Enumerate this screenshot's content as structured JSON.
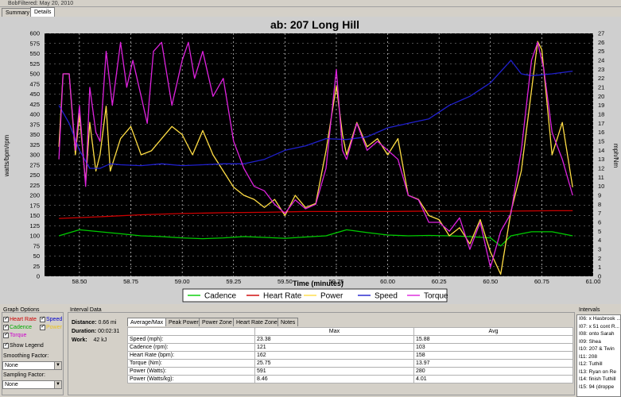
{
  "window": {
    "title": "BobFiltered: May 20, 2010"
  },
  "tabs": [
    {
      "label": "Summary"
    },
    {
      "label": "Details"
    }
  ],
  "chart_data": {
    "type": "line",
    "title": "ab: 207 Long Hill",
    "xlabel": "Time (minutes)",
    "ylabel_left": "watts/bpm/rpm",
    "ylabel_right": "mph/Nm",
    "xlim": [
      58.33,
      61.0
    ],
    "ylim_left": [
      0,
      600
    ],
    "ylim_right": [
      0,
      27
    ],
    "x_ticks": [
      "58.50",
      "58.75",
      "59.00",
      "59.25",
      "59.50",
      "59.75",
      "60.00",
      "60.25",
      "60.50",
      "60.75",
      "61.00"
    ],
    "y_ticks_left": [
      "0",
      "25",
      "50",
      "75",
      "100",
      "125",
      "150",
      "175",
      "200",
      "225",
      "250",
      "275",
      "300",
      "325",
      "350",
      "375",
      "400",
      "425",
      "450",
      "475",
      "500",
      "525",
      "550",
      "575",
      "600"
    ],
    "y_ticks_right": [
      "0",
      "1",
      "2",
      "3",
      "4",
      "5",
      "6",
      "7",
      "8",
      "9",
      "10",
      "11",
      "12",
      "13",
      "14",
      "15",
      "16",
      "17",
      "18",
      "19",
      "20",
      "21",
      "22",
      "23",
      "24",
      "25",
      "26",
      "27"
    ],
    "grid": true,
    "legend": "bottom",
    "series": [
      {
        "name": "Cadence",
        "axis": "left",
        "color": "#00cc00",
        "x": [
          58.4,
          58.5,
          58.6,
          58.7,
          58.8,
          58.9,
          59.0,
          59.1,
          59.2,
          59.3,
          59.4,
          59.5,
          59.6,
          59.7,
          59.8,
          59.9,
          60.0,
          60.1,
          60.2,
          60.3,
          60.4,
          60.5,
          60.55,
          60.6,
          60.7,
          60.8,
          60.9
        ],
        "y": [
          100,
          115,
          110,
          105,
          100,
          98,
          95,
          93,
          95,
          98,
          96,
          94,
          97,
          100,
          115,
          108,
          102,
          100,
          101,
          100,
          98,
          95,
          75,
          100,
          110,
          110,
          100
        ]
      },
      {
        "name": "Heart Rate",
        "axis": "left",
        "color": "#cc0000",
        "x": [
          58.4,
          58.6,
          58.8,
          59.0,
          59.2,
          59.4,
          59.6,
          59.8,
          60.0,
          60.2,
          60.4,
          60.6,
          60.8,
          60.9
        ],
        "y": [
          143,
          147,
          152,
          155,
          157,
          158,
          160,
          160,
          160,
          161,
          160,
          161,
          162,
          162
        ]
      },
      {
        "name": "Power",
        "axis": "left",
        "color": "#ffdd44",
        "x": [
          58.4,
          58.42,
          58.45,
          58.48,
          58.5,
          58.53,
          58.55,
          58.58,
          58.6,
          58.63,
          58.65,
          58.7,
          58.75,
          58.8,
          58.85,
          58.9,
          58.95,
          59.0,
          59.05,
          59.1,
          59.15,
          59.2,
          59.25,
          59.3,
          59.35,
          59.4,
          59.45,
          59.5,
          59.55,
          59.6,
          59.65,
          59.7,
          59.75,
          59.78,
          59.8,
          59.85,
          59.9,
          59.95,
          60.0,
          60.05,
          60.1,
          60.15,
          60.2,
          60.25,
          60.3,
          60.35,
          60.4,
          60.45,
          60.5,
          60.55,
          60.6,
          60.65,
          60.7,
          60.73,
          60.75,
          60.8,
          60.85,
          60.9
        ],
        "y": [
          320,
          500,
          500,
          300,
          400,
          230,
          380,
          260,
          300,
          420,
          260,
          340,
          370,
          300,
          310,
          340,
          370,
          350,
          300,
          360,
          300,
          260,
          220,
          200,
          190,
          170,
          190,
          150,
          200,
          170,
          180,
          310,
          470,
          350,
          300,
          380,
          320,
          340,
          300,
          340,
          200,
          190,
          150,
          140,
          100,
          120,
          80,
          140,
          60,
          5,
          160,
          260,
          460,
          580,
          560,
          300,
          380,
          220
        ]
      },
      {
        "name": "Speed",
        "axis": "right",
        "color": "#2020cc",
        "x": [
          58.4,
          58.45,
          58.5,
          58.55,
          58.6,
          58.65,
          58.7,
          58.8,
          58.9,
          59.0,
          59.1,
          59.2,
          59.3,
          59.4,
          59.5,
          59.6,
          59.7,
          59.8,
          59.9,
          60.0,
          60.1,
          60.2,
          60.3,
          60.4,
          60.5,
          60.6,
          60.65,
          60.7,
          60.8,
          60.9
        ],
        "y": [
          19,
          17,
          14,
          12,
          12,
          12.5,
          12.4,
          12.3,
          12.5,
          12.3,
          12.4,
          12.5,
          12.5,
          13,
          14,
          14.5,
          15.3,
          15.2,
          15.5,
          16.5,
          17,
          17.5,
          19,
          20,
          21.5,
          24,
          22.5,
          22.3,
          22.5,
          22.8
        ]
      },
      {
        "name": "Torque",
        "axis": "right",
        "color": "#dd22dd",
        "x": [
          58.4,
          58.42,
          58.45,
          58.48,
          58.5,
          58.53,
          58.55,
          58.58,
          58.6,
          58.63,
          58.66,
          58.7,
          58.73,
          58.76,
          58.8,
          58.83,
          58.86,
          58.9,
          58.95,
          59.0,
          59.03,
          59.06,
          59.1,
          59.15,
          59.2,
          59.25,
          59.3,
          59.35,
          59.4,
          59.45,
          59.5,
          59.55,
          59.6,
          59.65,
          59.7,
          59.75,
          59.78,
          59.8,
          59.85,
          59.9,
          59.95,
          60.0,
          60.05,
          60.1,
          60.15,
          60.2,
          60.25,
          60.3,
          60.35,
          60.4,
          60.45,
          60.5,
          60.55,
          60.6,
          60.65,
          60.7,
          60.73,
          60.76,
          60.8,
          60.85,
          60.9
        ],
        "y": [
          13,
          22.5,
          22.5,
          14,
          19,
          10,
          21,
          16,
          15,
          25,
          19,
          26,
          21,
          24,
          20,
          17,
          25,
          26,
          19,
          24,
          26,
          22,
          25,
          20,
          22,
          15,
          12,
          10,
          9.5,
          8,
          7,
          8.5,
          7.5,
          8,
          12,
          23,
          14,
          13,
          17,
          14,
          15,
          14,
          13,
          9,
          8.5,
          6,
          6,
          5,
          6.5,
          3,
          6,
          1,
          5,
          7,
          14,
          24,
          26,
          23,
          16,
          13,
          9
        ]
      }
    ],
    "legend_entries": [
      "Cadence",
      "Heart Rate",
      "Power",
      "Speed",
      "Torque"
    ]
  },
  "graph_options": {
    "title": "Graph Options",
    "series_toggles": [
      {
        "label": "Heart Rate",
        "color": "#cc0000"
      },
      {
        "label": "Speed",
        "color": "#0000cc"
      },
      {
        "label": "Cadence",
        "color": "#00aa00"
      },
      {
        "label": "Power",
        "color": "#e8c020"
      },
      {
        "label": "Torque",
        "color": "#cc00cc"
      }
    ],
    "show_legend": "Show Legend",
    "smoothing_label": "Smoothing Factor:",
    "smoothing_value": "None",
    "sampling_label": "Sampling Factor:",
    "sampling_value": "None"
  },
  "interval_data": {
    "title": "Interval Data",
    "distance_label": "Distance:",
    "distance_value": "0.66",
    "distance_unit": "mi",
    "duration_label": "Duration:",
    "duration_value": "00:02:31",
    "work_label": "Work:",
    "work_value": "42",
    "work_unit": "kJ",
    "tabs": [
      "Average/Max",
      "Peak Power",
      "Power Zone",
      "Heart Rate Zone",
      "Notes"
    ],
    "table_headers": [
      "",
      "Max",
      "Avg"
    ],
    "rows": [
      {
        "label": "Speed (mph):",
        "max": "23.38",
        "avg": "15.88"
      },
      {
        "label": "Cadence (rpm):",
        "max": "121",
        "avg": "103"
      },
      {
        "label": "Heart Rate (bpm):",
        "max": "162",
        "avg": "158"
      },
      {
        "label": "Torque (Nm):",
        "max": "25.75",
        "avg": "13.97"
      },
      {
        "label": "Power (Watts):",
        "max": "591",
        "avg": "280"
      },
      {
        "label": "Power (Watts/kg):",
        "max": "8.46",
        "avg": "4.01"
      }
    ]
  },
  "intervals": {
    "title": "Intervals",
    "items": [
      "I06: x Hasbrook ...",
      "I07: x 51 cont R...",
      "I08: onto Sarah",
      "I09: Shea",
      "I10: 207 & Twin",
      "I11: 208",
      "I12: Tuthill",
      "I13: Ryan on Re",
      "I14: finish Tuthill",
      "I15: 94 (droppe"
    ]
  }
}
